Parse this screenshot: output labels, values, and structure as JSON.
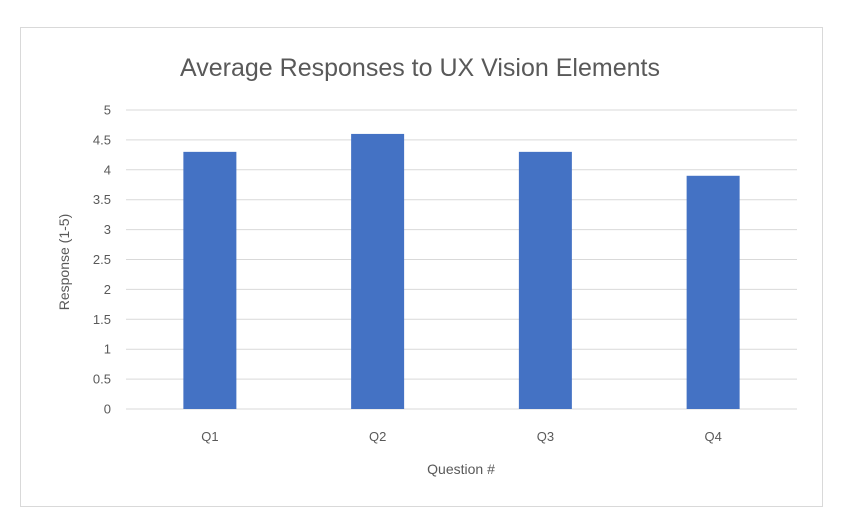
{
  "chart_data": {
    "type": "bar",
    "title": "Average Responses to UX Vision Elements",
    "xlabel": "Question #",
    "ylabel": "Response (1-5)",
    "categories": [
      "Q1",
      "Q2",
      "Q3",
      "Q4"
    ],
    "values": [
      4.3,
      4.6,
      4.3,
      3.9
    ],
    "ylim": [
      0,
      5
    ],
    "yticks": [
      "0",
      "0.5",
      "1",
      "1.5",
      "2",
      "2.5",
      "3",
      "3.5",
      "4",
      "4.5",
      "5"
    ],
    "grid": true,
    "legend": "none",
    "bar_color": "#4472c4",
    "grid_color": "#d9d9d9"
  }
}
